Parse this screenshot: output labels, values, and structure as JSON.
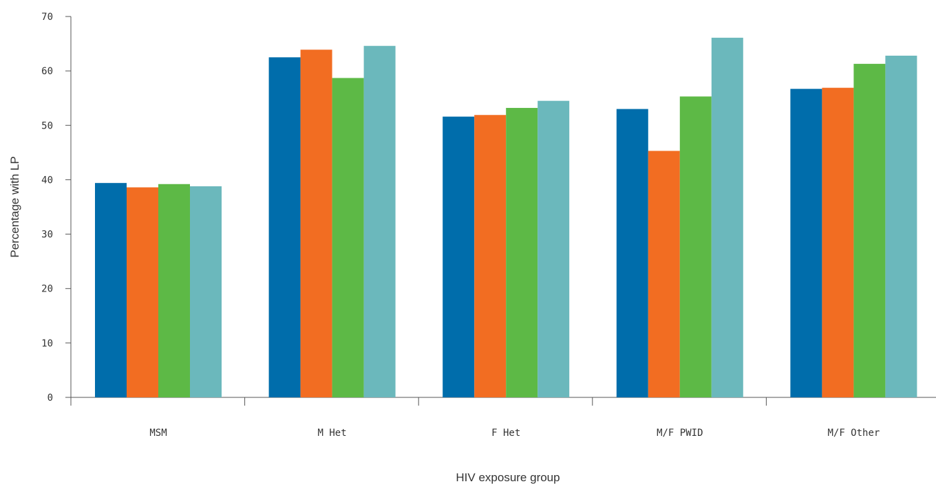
{
  "chart_data": {
    "type": "bar",
    "title": "",
    "xlabel": "HIV exposure group",
    "ylabel": "Percentage with LP",
    "ylim": [
      0,
      70
    ],
    "yticks": [
      0,
      10,
      20,
      30,
      40,
      50,
      60,
      70
    ],
    "grid": false,
    "legend": "none",
    "categories": [
      "MSM",
      "M Het",
      "F Het",
      "M/F PWID",
      "M/F Other"
    ],
    "series": [
      {
        "color": "#006DAB",
        "values": [
          39.4,
          62.5,
          51.6,
          53.0,
          56.7
        ]
      },
      {
        "color": "#F26D22",
        "values": [
          38.6,
          63.9,
          51.9,
          45.3,
          56.9
        ]
      },
      {
        "color": "#5DB946",
        "values": [
          39.2,
          58.7,
          53.2,
          55.3,
          61.3
        ]
      },
      {
        "color": "#6BB8BC",
        "values": [
          38.8,
          64.6,
          54.5,
          66.1,
          62.8
        ]
      }
    ]
  }
}
